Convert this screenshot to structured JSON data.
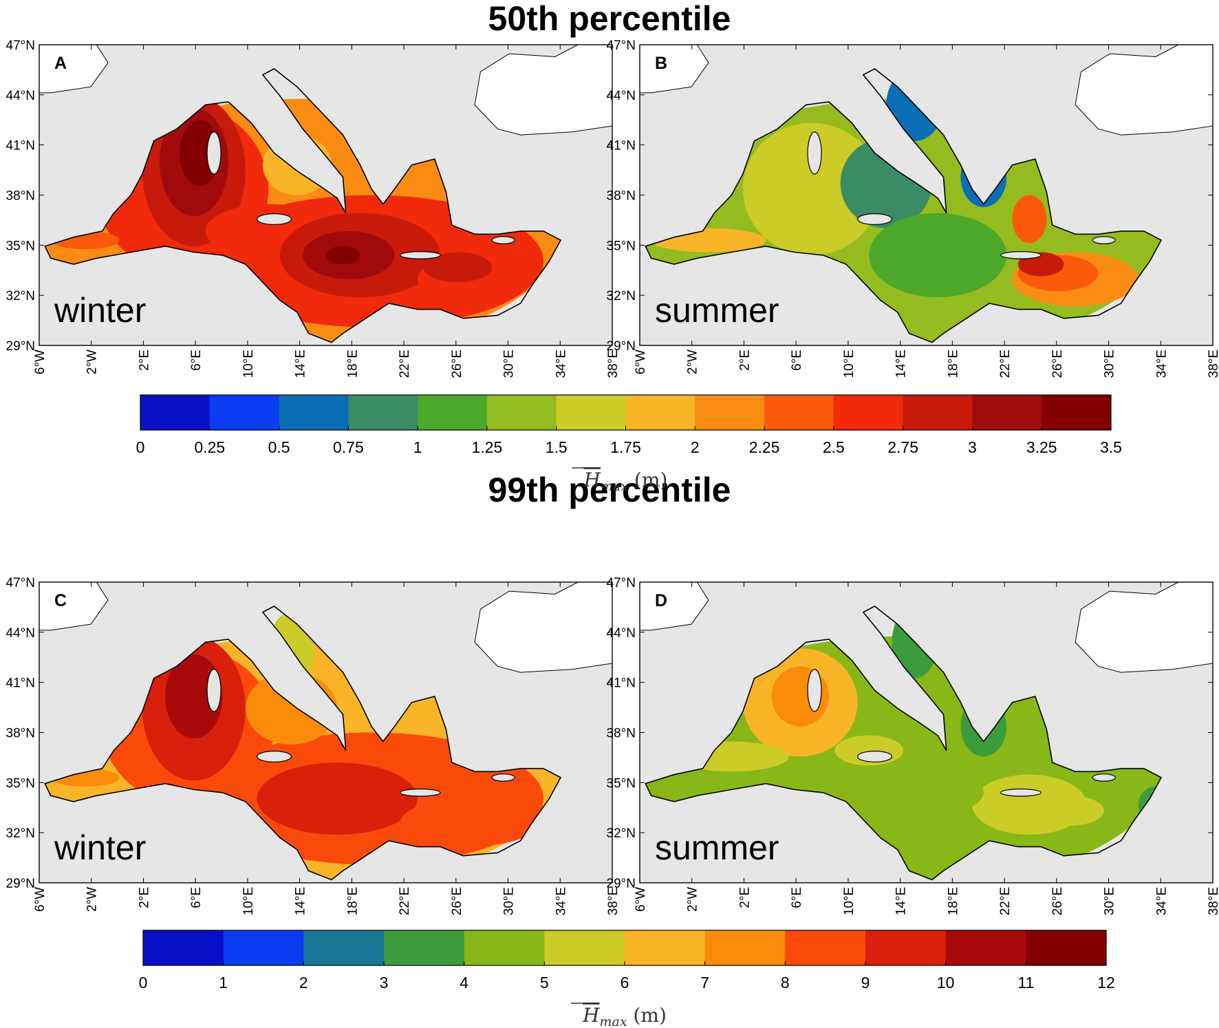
{
  "figure": {
    "groups": [
      {
        "title": "50th percentile",
        "panels": [
          {
            "letter": "A",
            "season": "winter"
          },
          {
            "letter": "B",
            "season": "summer"
          }
        ],
        "colorbar": {
          "ticks": [
            "0",
            "0.25",
            "0.5",
            "0.75",
            "1",
            "1.25",
            "1.5",
            "1.75",
            "2",
            "2.25",
            "2.5",
            "2.75",
            "3",
            "3.25",
            "3.5"
          ],
          "label_main": "H",
          "label_sub": "max",
          "label_unit": "(m)"
        }
      },
      {
        "title": "99th percentile",
        "panels": [
          {
            "letter": "C",
            "season": "winter"
          },
          {
            "letter": "D",
            "season": "summer"
          }
        ],
        "colorbar": {
          "ticks": [
            "0",
            "1",
            "2",
            "3",
            "4",
            "5",
            "6",
            "7",
            "8",
            "9",
            "10",
            "11",
            "12"
          ],
          "label_main": "H",
          "label_sub": "max",
          "label_unit": "(m)"
        }
      }
    ],
    "lat_ticks": [
      "47°N",
      "44°N",
      "41°N",
      "38°N",
      "35°N",
      "32°N",
      "29°N"
    ],
    "lon_ticks": [
      "6°W",
      "2°W",
      "2°E",
      "6°E",
      "10°E",
      "14°E",
      "18°E",
      "22°E",
      "26°E",
      "30°E",
      "34°E",
      "38°E"
    ],
    "colors": {
      "land": "#e6e6e6",
      "ocean_outside": "#ffffff",
      "cb50": [
        "#0a10c8",
        "#0a3cf0",
        "#0a6eb4",
        "#3a8c64",
        "#4ca828",
        "#94bc1e",
        "#cccc28",
        "#fab428",
        "#fa8c14",
        "#fa5a0a",
        "#f02a0a",
        "#c81a0a",
        "#a00a0a",
        "#820000"
      ],
      "cb99": [
        "#0a10c8",
        "#0a3cf0",
        "#1a7896",
        "#3c9c3c",
        "#88b818",
        "#cccc28",
        "#fab428",
        "#fa8c0a",
        "#fa4a0a",
        "#d8200a",
        "#a80a0a",
        "#820000"
      ]
    }
  }
}
